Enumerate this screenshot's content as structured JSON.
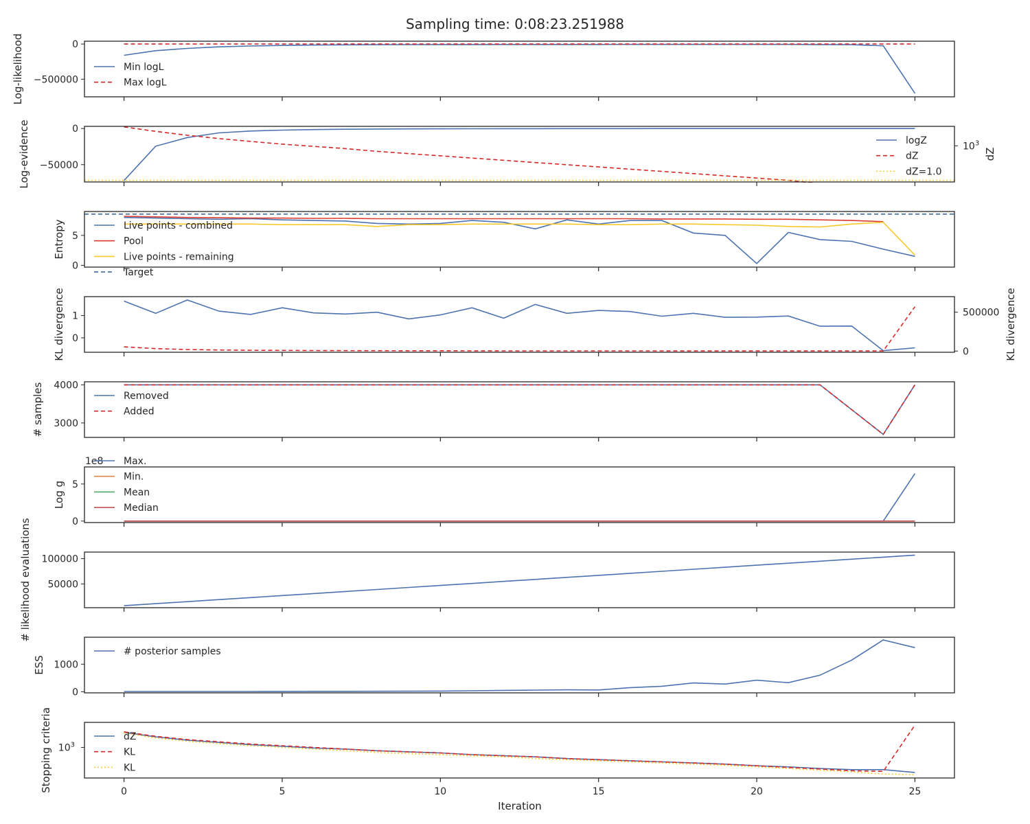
{
  "title": "Sampling time: 0:08:23.251988",
  "xlabel": "Iteration",
  "x_ticks": [
    0,
    5,
    10,
    15,
    20,
    25
  ],
  "x_range": [
    -1.25,
    26.25
  ],
  "colors": {
    "blue": "#4c72b0",
    "red": "#d62728",
    "red2": "#dc3a2f",
    "yellow": "#f8c92a",
    "orange": "#dd8452",
    "green": "#55a868",
    "crimson": "#c44e52",
    "navy": "#3a6b9a"
  },
  "chart_data": [
    {
      "type": "line",
      "ylabel": "Log-likelihood",
      "ylim": [
        -750000,
        40000
      ],
      "yticks": [
        {
          "v": 0,
          "label": "0"
        },
        {
          "v": -500000,
          "label": "−500000"
        }
      ],
      "legend_pos": "center-left",
      "series": [
        {
          "name": "Min logL",
          "color": "blue",
          "dash": "solid",
          "x": [
            0,
            1,
            2,
            3,
            4,
            5,
            6,
            7,
            8,
            9,
            10,
            11,
            12,
            13,
            14,
            15,
            16,
            17,
            18,
            19,
            20,
            21,
            22,
            23,
            24,
            25
          ],
          "values": [
            -160000,
            -95000,
            -62000,
            -40000,
            -28000,
            -20000,
            -15000,
            -12000,
            -10000,
            -9000,
            -8000,
            -7500,
            -7000,
            -7000,
            -6500,
            -6500,
            -6000,
            -6000,
            -6000,
            -6000,
            -6000,
            -6000,
            -8000,
            -10000,
            -25000,
            -700000
          ]
        },
        {
          "name": "Max logL",
          "color": "red",
          "dash": "dashed",
          "x": [
            0,
            25
          ],
          "values": [
            0,
            0
          ]
        }
      ]
    },
    {
      "type": "line",
      "ylabel": "Log-evidence",
      "ylabel_right": "dZ",
      "ylim": [
        -74000,
        3000
      ],
      "yticks": [
        {
          "v": 0,
          "label": "0"
        },
        {
          "v": -50000,
          "label": "−50000"
        }
      ],
      "right_ticks": [
        {
          "frac": 0.65,
          "label": "10",
          "sup": "3"
        }
      ],
      "legend_pos": "right",
      "series": [
        {
          "name": "logZ",
          "color": "blue",
          "dash": "solid",
          "x": [
            0,
            1,
            2,
            3,
            4,
            5,
            6,
            7,
            8,
            9,
            10,
            11,
            12,
            13,
            14,
            15,
            16,
            17,
            18,
            19,
            20,
            21,
            22,
            23,
            24,
            25
          ],
          "values": [
            -72000,
            -24500,
            -12500,
            -6000,
            -3500,
            -2200,
            -1500,
            -1000,
            -700,
            -500,
            -400,
            -300,
            -250,
            -200,
            -150,
            -120,
            -100,
            -80,
            -60,
            -50,
            -40,
            -30,
            -25,
            -20,
            -15,
            -10
          ]
        },
        {
          "name": "dZ",
          "color": "red",
          "dash": "dashed",
          "right_frac": [
            0.99,
            0.91,
            0.84,
            0.78,
            0.73,
            0.68,
            0.64,
            0.6,
            0.55,
            0.51,
            0.47,
            0.43,
            0.39,
            0.35,
            0.31,
            0.27,
            0.23,
            0.19,
            0.15,
            0.11,
            0.07,
            0.03,
            -0.03,
            -0.07,
            -0.06,
            -0.2
          ]
        },
        {
          "name": "dZ=1.0",
          "color": "yellow",
          "dash": "dotted",
          "right_frac_const": 0.03
        }
      ]
    },
    {
      "type": "line",
      "ylabel": "Entropy",
      "ylim": [
        -0.3,
        9.0
      ],
      "yticks": [
        {
          "v": 0,
          "label": "0"
        },
        {
          "v": 5,
          "label": "5"
        }
      ],
      "legend_pos": "left",
      "series": [
        {
          "name": "Live points - combined",
          "color": "blue",
          "dash": "solid",
          "x": [
            0,
            1,
            2,
            3,
            4,
            5,
            6,
            7,
            8,
            9,
            10,
            11,
            12,
            13,
            14,
            15,
            16,
            17,
            18,
            19,
            20,
            21,
            22,
            23,
            24,
            25
          ],
          "values": [
            8.0,
            7.9,
            7.8,
            7.7,
            7.8,
            7.6,
            7.5,
            7.4,
            7.0,
            6.9,
            7.0,
            7.5,
            7.2,
            6.1,
            7.6,
            6.9,
            7.5,
            7.5,
            5.4,
            5.0,
            0.3,
            5.5,
            4.3,
            4.0,
            2.7,
            1.5
          ]
        },
        {
          "name": "Pool",
          "color": "red2",
          "dash": "solid",
          "x": [
            0,
            1,
            2,
            3,
            4,
            5,
            6,
            7,
            8,
            9,
            10,
            11,
            12,
            13,
            14,
            15,
            16,
            17,
            18,
            19,
            20,
            21,
            22,
            23,
            24
          ],
          "values": [
            8.2,
            8.1,
            8.0,
            7.95,
            7.9,
            7.9,
            7.85,
            7.85,
            7.8,
            7.8,
            7.8,
            7.8,
            7.8,
            7.8,
            7.8,
            7.8,
            7.8,
            7.75,
            7.75,
            7.75,
            7.7,
            7.7,
            7.6,
            7.5,
            7.3
          ]
        },
        {
          "name": "Live points - remaining",
          "color": "yellow",
          "dash": "solid",
          "x": [
            0,
            1,
            2,
            3,
            4,
            5,
            6,
            7,
            8,
            9,
            10,
            11,
            12,
            13,
            14,
            15,
            16,
            17,
            18,
            19,
            20,
            21,
            22,
            23,
            24,
            25
          ],
          "values": [
            6.9,
            6.9,
            6.9,
            6.9,
            6.9,
            6.8,
            6.8,
            6.8,
            6.5,
            6.8,
            6.8,
            6.9,
            6.9,
            6.9,
            6.9,
            6.8,
            6.8,
            6.9,
            6.9,
            6.8,
            6.7,
            6.5,
            6.4,
            6.9,
            7.2,
            1.7
          ]
        },
        {
          "name": "Target",
          "color": "navy",
          "dash": "dashed",
          "x": [
            -1.25,
            26.25
          ],
          "values": [
            8.56,
            8.56
          ]
        }
      ]
    },
    {
      "type": "line",
      "ylabel": "KL divergence",
      "ylabel_right": "KL divergence",
      "ylim": [
        -0.65,
        1.85
      ],
      "yticks": [
        {
          "v": 0,
          "label": "0"
        },
        {
          "v": 1,
          "label": "1"
        }
      ],
      "right_ylim": [
        -15000,
        700000
      ],
      "right_ticks_v": [
        {
          "v": 0,
          "label": "0"
        },
        {
          "v": 500000,
          "label": "500000"
        }
      ],
      "series": [
        {
          "name": "",
          "color": "blue",
          "dash": "solid",
          "x": [
            0,
            1,
            2,
            3,
            4,
            5,
            6,
            7,
            8,
            9,
            10,
            11,
            12,
            13,
            14,
            15,
            16,
            17,
            18,
            19,
            20,
            21,
            22,
            23,
            24,
            25
          ],
          "values": [
            1.65,
            1.1,
            1.7,
            1.2,
            1.05,
            1.35,
            1.12,
            1.07,
            1.15,
            0.85,
            1.03,
            1.35,
            0.88,
            1.5,
            1.1,
            1.23,
            1.18,
            0.97,
            1.1,
            0.92,
            0.93,
            0.98,
            0.52,
            0.53,
            -0.58,
            -0.45
          ]
        },
        {
          "name": "",
          "color": "red",
          "dash": "dashed",
          "axis": "right",
          "x": [
            0,
            1,
            2,
            3,
            4,
            5,
            6,
            7,
            8,
            9,
            10,
            11,
            12,
            13,
            14,
            15,
            16,
            17,
            18,
            19,
            20,
            21,
            22,
            23,
            24,
            25
          ],
          "values": [
            55000,
            32000,
            20000,
            14000,
            11000,
            9000,
            7000,
            6000,
            5000,
            4500,
            4000,
            3500,
            3000,
            3000,
            3000,
            2500,
            2500,
            2500,
            2000,
            2000,
            2000,
            2000,
            2000,
            2000,
            2000,
            570000
          ]
        }
      ]
    },
    {
      "type": "line",
      "ylabel": "# samples",
      "ylim": [
        2620,
        4080
      ],
      "yticks": [
        {
          "v": 3000,
          "label": "3000"
        },
        {
          "v": 4000,
          "label": "4000"
        }
      ],
      "legend_pos": "upper-left",
      "series": [
        {
          "name": "Removed",
          "color": "blue",
          "dash": "solid",
          "x": [
            0,
            22,
            24,
            25
          ],
          "values": [
            4000,
            4000,
            2700,
            4000
          ]
        },
        {
          "name": "Added",
          "color": "red",
          "dash": "dashed",
          "x": [
            0,
            22,
            24,
            25
          ],
          "values": [
            4000,
            4000,
            2700,
            4000
          ]
        }
      ]
    },
    {
      "type": "line",
      "ylabel": "Log g",
      "offset_text": "1e8",
      "ylim": [
        -0.2,
        7.3
      ],
      "yticks": [
        {
          "v": 0,
          "label": "0"
        },
        {
          "v": 5,
          "label": "5"
        }
      ],
      "legend_pos": "upper-left",
      "series": [
        {
          "name": "Max.",
          "color": "blue",
          "dash": "solid",
          "x": [
            0,
            24,
            25
          ],
          "values": [
            0,
            0,
            6.4
          ]
        },
        {
          "name": "Min.",
          "color": "orange",
          "dash": "solid",
          "x": [
            0,
            25
          ],
          "values": [
            0,
            0
          ]
        },
        {
          "name": "Mean",
          "color": "green",
          "dash": "solid",
          "x": [
            0,
            25
          ],
          "values": [
            0,
            0
          ]
        },
        {
          "name": "Median",
          "color": "crimson",
          "dash": "solid",
          "x": [
            0,
            25
          ],
          "values": [
            0,
            0
          ]
        }
      ]
    },
    {
      "type": "line",
      "ylabel": "# likelihood evaluations",
      "ylim": [
        3000,
        113000
      ],
      "yticks": [
        {
          "v": 50000,
          "label": "50000"
        },
        {
          "v": 100000,
          "label": "100000"
        }
      ],
      "series": [
        {
          "name": "",
          "color": "blue",
          "dash": "solid",
          "x": [
            0,
            1,
            2,
            3,
            4,
            5,
            6,
            7,
            8,
            9,
            10,
            11,
            12,
            13,
            14,
            15,
            16,
            17,
            18,
            19,
            20,
            21,
            22,
            23,
            24,
            25
          ],
          "values": [
            7000,
            11000,
            15000,
            19000,
            23000,
            27000,
            31000,
            35000,
            39000,
            43000,
            47000,
            51000,
            55000,
            59000,
            63000,
            67000,
            71000,
            75000,
            79000,
            83000,
            87000,
            91000,
            95000,
            99000,
            103000,
            107000
          ]
        }
      ]
    },
    {
      "type": "line",
      "ylabel": "ESS",
      "ylim": [
        -40,
        1980
      ],
      "yticks": [
        {
          "v": 0,
          "label": "0"
        },
        {
          "v": 1000,
          "label": "1000"
        }
      ],
      "legend_pos": "upper-left",
      "series": [
        {
          "name": "# posterior samples",
          "color": "blue",
          "dash": "solid",
          "x": [
            0,
            1,
            2,
            3,
            4,
            5,
            6,
            7,
            8,
            9,
            10,
            11,
            12,
            13,
            14,
            15,
            16,
            17,
            18,
            19,
            20,
            21,
            22,
            23,
            24,
            25
          ],
          "values": [
            10,
            10,
            10,
            10,
            10,
            12,
            14,
            16,
            18,
            20,
            25,
            35,
            50,
            60,
            70,
            65,
            150,
            200,
            320,
            280,
            420,
            330,
            600,
            1150,
            1880,
            1600
          ]
        }
      ]
    },
    {
      "type": "line",
      "ylabel": "Stopping criteria",
      "log_scale": true,
      "ylim": [
        0.0,
        1.0
      ],
      "yticks_frac": [
        {
          "frac": 0.55,
          "label": "10",
          "sup": "3"
        }
      ],
      "legend_pos": "left",
      "series": [
        {
          "name": "dZ",
          "color": "blue",
          "dash": "solid",
          "x": [
            0,
            1,
            2,
            3,
            4,
            5,
            6,
            7,
            8,
            9,
            10,
            11,
            12,
            13,
            14,
            15,
            16,
            17,
            18,
            19,
            20,
            21,
            22,
            23,
            24,
            25
          ],
          "values": [
            0.82,
            0.74,
            0.68,
            0.64,
            0.6,
            0.57,
            0.54,
            0.52,
            0.49,
            0.47,
            0.45,
            0.42,
            0.4,
            0.38,
            0.35,
            0.33,
            0.31,
            0.29,
            0.27,
            0.25,
            0.22,
            0.2,
            0.17,
            0.15,
            0.15,
            0.1
          ]
        },
        {
          "name": "KL",
          "color": "red",
          "dash": "dashed",
          "x": [
            0,
            1,
            2,
            3,
            4,
            5,
            6,
            7,
            8,
            9,
            10,
            11,
            12,
            13,
            14,
            15,
            16,
            17,
            18,
            19,
            20,
            21,
            22,
            23,
            24,
            25
          ],
          "values": [
            0.83,
            0.75,
            0.69,
            0.65,
            0.61,
            0.58,
            0.55,
            0.52,
            0.49,
            0.47,
            0.45,
            0.42,
            0.4,
            0.38,
            0.35,
            0.33,
            0.31,
            0.29,
            0.27,
            0.25,
            0.22,
            0.19,
            0.16,
            0.13,
            0.12,
            0.95
          ]
        },
        {
          "name": "KL",
          "color": "yellow",
          "dash": "dotted",
          "x": [
            0,
            1,
            2,
            3,
            4,
            5,
            6,
            7,
            8,
            9,
            10,
            11,
            12,
            13,
            14,
            15,
            16,
            17,
            18,
            19,
            20,
            21,
            22,
            23,
            24,
            25
          ],
          "values": [
            0.81,
            0.72,
            0.66,
            0.62,
            0.58,
            0.55,
            0.52,
            0.49,
            0.46,
            0.44,
            0.42,
            0.4,
            0.38,
            0.35,
            0.33,
            0.31,
            0.29,
            0.27,
            0.25,
            0.23,
            0.2,
            0.17,
            0.14,
            0.11,
            0.07,
            0.06
          ]
        }
      ]
    }
  ]
}
